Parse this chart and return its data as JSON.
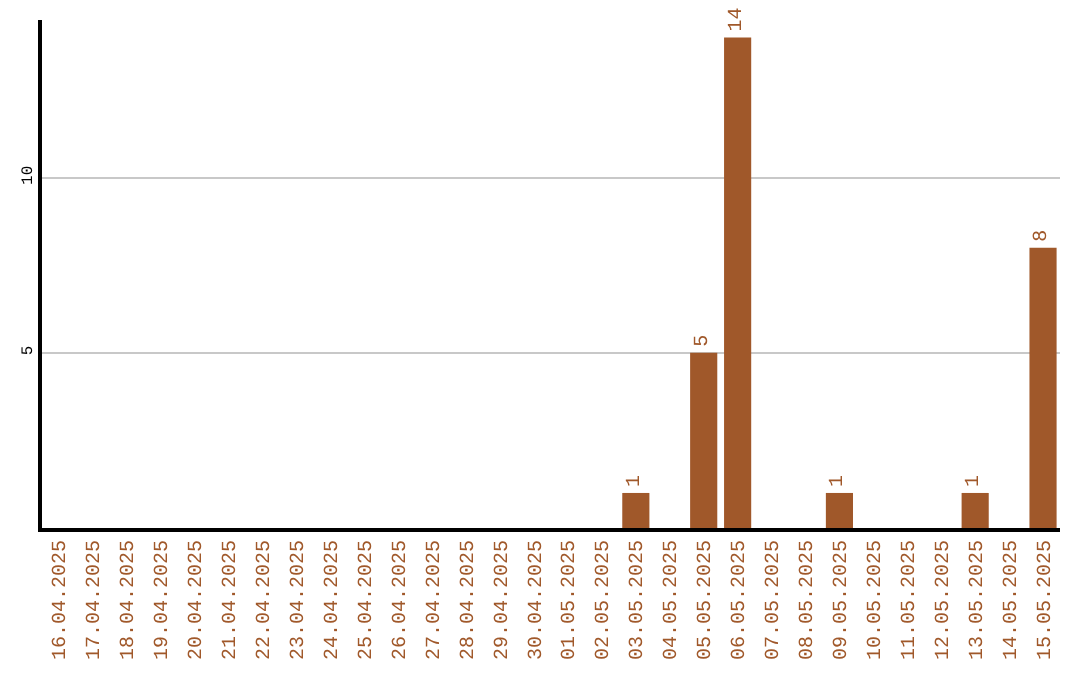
{
  "chart_data": {
    "type": "bar",
    "categories": [
      "16.04.2025",
      "17.04.2025",
      "18.04.2025",
      "19.04.2025",
      "20.04.2025",
      "21.04.2025",
      "22.04.2025",
      "23.04.2025",
      "24.04.2025",
      "25.04.2025",
      "26.04.2025",
      "27.04.2025",
      "28.04.2025",
      "29.04.2025",
      "30.04.2025",
      "01.05.2025",
      "02.05.2025",
      "03.05.2025",
      "04.05.2025",
      "05.05.2025",
      "06.05.2025",
      "07.05.2025",
      "08.05.2025",
      "09.05.2025",
      "10.05.2025",
      "11.05.2025",
      "12.05.2025",
      "13.05.2025",
      "14.05.2025",
      "15.05.2025"
    ],
    "values": [
      0,
      0,
      0,
      0,
      0,
      0,
      0,
      0,
      0,
      0,
      0,
      0,
      0,
      0,
      0,
      0,
      0,
      1,
      0,
      5,
      14,
      0,
      0,
      1,
      0,
      0,
      0,
      1,
      0,
      8
    ],
    "value_labels": [
      null,
      null,
      null,
      null,
      null,
      null,
      null,
      null,
      null,
      null,
      null,
      null,
      null,
      null,
      null,
      null,
      null,
      "1",
      null,
      "5",
      "14",
      null,
      null,
      "1",
      null,
      null,
      null,
      "1",
      null,
      "8"
    ],
    "color": "#a0582a",
    "ylim": [
      0,
      14.5
    ],
    "yticks": [
      5,
      10
    ],
    "grid": "y",
    "legend": false
  }
}
